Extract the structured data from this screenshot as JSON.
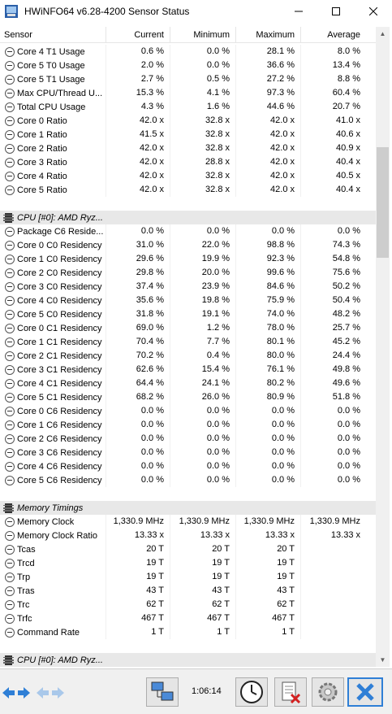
{
  "window": {
    "title": "HWiNFO64 v6.28-4200 Sensor Status"
  },
  "columns": {
    "sensor": "Sensor",
    "current": "Current",
    "minimum": "Minimum",
    "maximum": "Maximum",
    "average": "Average"
  },
  "rows": [
    {
      "type": "sensor",
      "name": "Core 4 T1 Usage",
      "cur": "0.6 %",
      "min": "0.0 %",
      "max": "28.1 %",
      "avg": "8.0 %"
    },
    {
      "type": "sensor",
      "name": "Core 5 T0 Usage",
      "cur": "2.0 %",
      "min": "0.0 %",
      "max": "36.6 %",
      "avg": "13.4 %"
    },
    {
      "type": "sensor",
      "name": "Core 5 T1 Usage",
      "cur": "2.7 %",
      "min": "0.5 %",
      "max": "27.2 %",
      "avg": "8.8 %"
    },
    {
      "type": "sensor",
      "name": "Max CPU/Thread U...",
      "cur": "15.3 %",
      "min": "4.1 %",
      "max": "97.3 %",
      "avg": "60.4 %"
    },
    {
      "type": "sensor",
      "name": "Total CPU Usage",
      "cur": "4.3 %",
      "min": "1.6 %",
      "max": "44.6 %",
      "avg": "20.7 %"
    },
    {
      "type": "sensor",
      "name": "Core 0 Ratio",
      "cur": "42.0 x",
      "min": "32.8 x",
      "max": "42.0 x",
      "avg": "41.0 x"
    },
    {
      "type": "sensor",
      "name": "Core 1 Ratio",
      "cur": "41.5 x",
      "min": "32.8 x",
      "max": "42.0 x",
      "avg": "40.6 x"
    },
    {
      "type": "sensor",
      "name": "Core 2 Ratio",
      "cur": "42.0 x",
      "min": "32.8 x",
      "max": "42.0 x",
      "avg": "40.9 x"
    },
    {
      "type": "sensor",
      "name": "Core 3 Ratio",
      "cur": "42.0 x",
      "min": "28.8 x",
      "max": "42.0 x",
      "avg": "40.4 x"
    },
    {
      "type": "sensor",
      "name": "Core 4 Ratio",
      "cur": "42.0 x",
      "min": "32.8 x",
      "max": "42.0 x",
      "avg": "40.5 x"
    },
    {
      "type": "sensor",
      "name": "Core 5 Ratio",
      "cur": "42.0 x",
      "min": "32.8 x",
      "max": "42.0 x",
      "avg": "40.4 x"
    },
    {
      "type": "blank"
    },
    {
      "type": "group",
      "name": "CPU [#0]: AMD Ryz..."
    },
    {
      "type": "sensor",
      "name": "Package C6 Reside...",
      "cur": "0.0 %",
      "min": "0.0 %",
      "max": "0.0 %",
      "avg": "0.0 %"
    },
    {
      "type": "sensor",
      "name": "Core 0 C0 Residency",
      "cur": "31.0 %",
      "min": "22.0 %",
      "max": "98.8 %",
      "avg": "74.3 %"
    },
    {
      "type": "sensor",
      "name": "Core 1 C0 Residency",
      "cur": "29.6 %",
      "min": "19.9 %",
      "max": "92.3 %",
      "avg": "54.8 %"
    },
    {
      "type": "sensor",
      "name": "Core 2 C0 Residency",
      "cur": "29.8 %",
      "min": "20.0 %",
      "max": "99.6 %",
      "avg": "75.6 %"
    },
    {
      "type": "sensor",
      "name": "Core 3 C0 Residency",
      "cur": "37.4 %",
      "min": "23.9 %",
      "max": "84.6 %",
      "avg": "50.2 %"
    },
    {
      "type": "sensor",
      "name": "Core 4 C0 Residency",
      "cur": "35.6 %",
      "min": "19.8 %",
      "max": "75.9 %",
      "avg": "50.4 %"
    },
    {
      "type": "sensor",
      "name": "Core 5 C0 Residency",
      "cur": "31.8 %",
      "min": "19.1 %",
      "max": "74.0 %",
      "avg": "48.2 %"
    },
    {
      "type": "sensor",
      "name": "Core 0 C1 Residency",
      "cur": "69.0 %",
      "min": "1.2 %",
      "max": "78.0 %",
      "avg": "25.7 %"
    },
    {
      "type": "sensor",
      "name": "Core 1 C1 Residency",
      "cur": "70.4 %",
      "min": "7.7 %",
      "max": "80.1 %",
      "avg": "45.2 %"
    },
    {
      "type": "sensor",
      "name": "Core 2 C1 Residency",
      "cur": "70.2 %",
      "min": "0.4 %",
      "max": "80.0 %",
      "avg": "24.4 %"
    },
    {
      "type": "sensor",
      "name": "Core 3 C1 Residency",
      "cur": "62.6 %",
      "min": "15.4 %",
      "max": "76.1 %",
      "avg": "49.8 %"
    },
    {
      "type": "sensor",
      "name": "Core 4 C1 Residency",
      "cur": "64.4 %",
      "min": "24.1 %",
      "max": "80.2 %",
      "avg": "49.6 %"
    },
    {
      "type": "sensor",
      "name": "Core 5 C1 Residency",
      "cur": "68.2 %",
      "min": "26.0 %",
      "max": "80.9 %",
      "avg": "51.8 %"
    },
    {
      "type": "sensor",
      "name": "Core 0 C6 Residency",
      "cur": "0.0 %",
      "min": "0.0 %",
      "max": "0.0 %",
      "avg": "0.0 %"
    },
    {
      "type": "sensor",
      "name": "Core 1 C6 Residency",
      "cur": "0.0 %",
      "min": "0.0 %",
      "max": "0.0 %",
      "avg": "0.0 %"
    },
    {
      "type": "sensor",
      "name": "Core 2 C6 Residency",
      "cur": "0.0 %",
      "min": "0.0 %",
      "max": "0.0 %",
      "avg": "0.0 %"
    },
    {
      "type": "sensor",
      "name": "Core 3 C6 Residency",
      "cur": "0.0 %",
      "min": "0.0 %",
      "max": "0.0 %",
      "avg": "0.0 %"
    },
    {
      "type": "sensor",
      "name": "Core 4 C6 Residency",
      "cur": "0.0 %",
      "min": "0.0 %",
      "max": "0.0 %",
      "avg": "0.0 %"
    },
    {
      "type": "sensor",
      "name": "Core 5 C6 Residency",
      "cur": "0.0 %",
      "min": "0.0 %",
      "max": "0.0 %",
      "avg": "0.0 %"
    },
    {
      "type": "blank"
    },
    {
      "type": "group",
      "name": "Memory Timings"
    },
    {
      "type": "sensor",
      "name": "Memory Clock",
      "cur": "1,330.9 MHz",
      "min": "1,330.9 MHz",
      "max": "1,330.9 MHz",
      "avg": "1,330.9 MHz"
    },
    {
      "type": "sensor",
      "name": "Memory Clock Ratio",
      "cur": "13.33 x",
      "min": "13.33 x",
      "max": "13.33 x",
      "avg": "13.33 x"
    },
    {
      "type": "sensor",
      "name": "Tcas",
      "cur": "20 T",
      "min": "20 T",
      "max": "20 T",
      "avg": ""
    },
    {
      "type": "sensor",
      "name": "Trcd",
      "cur": "19 T",
      "min": "19 T",
      "max": "19 T",
      "avg": ""
    },
    {
      "type": "sensor",
      "name": "Trp",
      "cur": "19 T",
      "min": "19 T",
      "max": "19 T",
      "avg": ""
    },
    {
      "type": "sensor",
      "name": "Tras",
      "cur": "43 T",
      "min": "43 T",
      "max": "43 T",
      "avg": ""
    },
    {
      "type": "sensor",
      "name": "Trc",
      "cur": "62 T",
      "min": "62 T",
      "max": "62 T",
      "avg": ""
    },
    {
      "type": "sensor",
      "name": "Trfc",
      "cur": "467 T",
      "min": "467 T",
      "max": "467 T",
      "avg": ""
    },
    {
      "type": "sensor",
      "name": "Command Rate",
      "cur": "1 T",
      "min": "1 T",
      "max": "1 T",
      "avg": ""
    },
    {
      "type": "blank"
    },
    {
      "type": "group",
      "name": "CPU [#0]: AMD Ryz..."
    }
  ],
  "toolbar": {
    "timer": "1:06:14"
  },
  "colors": {
    "accent": "#0078d7",
    "group_bg": "#e8e8e8"
  }
}
